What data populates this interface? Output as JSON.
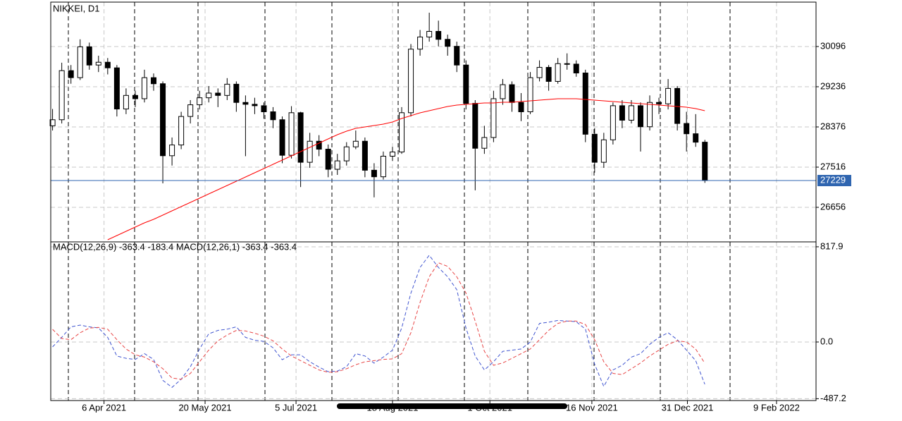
{
  "chart_data": [
    {
      "type": "candlestick",
      "title": "NIKKEI, D1",
      "candles": [
        [
          28400,
          28760,
          28300,
          28530
        ],
        [
          28530,
          29750,
          28450,
          29580
        ],
        [
          29580,
          29700,
          29300,
          29430
        ],
        [
          29430,
          30250,
          29380,
          30090
        ],
        [
          30090,
          30180,
          29600,
          29700
        ],
        [
          29700,
          29900,
          29550,
          29760
        ],
        [
          29760,
          29850,
          29500,
          29640
        ],
        [
          29640,
          29700,
          28600,
          28760
        ],
        [
          28760,
          29200,
          28650,
          29050
        ],
        [
          29050,
          29150,
          28800,
          28980
        ],
        [
          28980,
          29600,
          28900,
          29430
        ],
        [
          29430,
          29520,
          29150,
          29300
        ],
        [
          29300,
          29350,
          27170,
          27760
        ],
        [
          27760,
          28150,
          27550,
          27990
        ],
        [
          27990,
          28700,
          27900,
          28600
        ],
        [
          28600,
          28950,
          28450,
          28850
        ],
        [
          28850,
          29150,
          28750,
          29000
        ],
        [
          29000,
          29250,
          28900,
          29100
        ],
        [
          29100,
          29200,
          28800,
          29050
        ],
        [
          29050,
          29420,
          28950,
          29290
        ],
        [
          29290,
          29350,
          28700,
          28900
        ],
        [
          28900,
          29050,
          27750,
          28860
        ],
        [
          28860,
          29000,
          28650,
          28830
        ],
        [
          28830,
          28900,
          28550,
          28700
        ],
        [
          28700,
          28800,
          28350,
          28530
        ],
        [
          28530,
          28600,
          27600,
          27770
        ],
        [
          27770,
          28820,
          27700,
          28680
        ],
        [
          28680,
          28700,
          27090,
          27620
        ],
        [
          27620,
          28250,
          27500,
          28070
        ],
        [
          28070,
          28200,
          27750,
          27900
        ],
        [
          27900,
          28000,
          27300,
          27470
        ],
        [
          27470,
          27800,
          27350,
          27650
        ],
        [
          27650,
          28050,
          27550,
          27950
        ],
        [
          27950,
          28300,
          27900,
          28070
        ],
        [
          28070,
          28150,
          27300,
          27450
        ],
        [
          27450,
          27600,
          26870,
          27310
        ],
        [
          27310,
          27850,
          27250,
          27750
        ],
        [
          27750,
          27950,
          27650,
          27840
        ],
        [
          27840,
          28800,
          27800,
          28680
        ],
        [
          28680,
          30150,
          28600,
          30040
        ],
        [
          30040,
          30450,
          29900,
          30300
        ],
        [
          30300,
          30820,
          30200,
          30420
        ],
        [
          30420,
          30650,
          30100,
          30250
        ],
        [
          30250,
          30350,
          29900,
          30100
        ],
        [
          30100,
          30200,
          29550,
          29700
        ],
        [
          29700,
          29800,
          28750,
          28880
        ],
        [
          28880,
          28950,
          27020,
          27920
        ],
        [
          27920,
          28400,
          27800,
          28150
        ],
        [
          28150,
          29150,
          28050,
          28980
        ],
        [
          28980,
          29400,
          28850,
          29280
        ],
        [
          29280,
          29350,
          28700,
          28900
        ],
        [
          28900,
          29100,
          28500,
          28700
        ],
        [
          28700,
          29550,
          28650,
          29430
        ],
        [
          29430,
          29800,
          29350,
          29650
        ],
        [
          29650,
          29700,
          29150,
          29350
        ],
        [
          29350,
          29850,
          29300,
          29730
        ],
        [
          29730,
          29950,
          29600,
          29720
        ],
        [
          29720,
          29800,
          29450,
          29530
        ],
        [
          29530,
          29600,
          28050,
          28220
        ],
        [
          28220,
          28350,
          27400,
          27620
        ],
        [
          27620,
          28250,
          27500,
          28100
        ],
        [
          28100,
          28900,
          28000,
          28830
        ],
        [
          28830,
          28950,
          28350,
          28520
        ],
        [
          28520,
          28950,
          28450,
          28830
        ],
        [
          28830,
          28900,
          27850,
          28380
        ],
        [
          28380,
          29050,
          28300,
          28900
        ],
        [
          28900,
          29000,
          28650,
          28870
        ],
        [
          28870,
          29400,
          28750,
          29200
        ],
        [
          29200,
          29250,
          28300,
          28450
        ],
        [
          28450,
          28700,
          27850,
          28230
        ],
        [
          28230,
          28650,
          27950,
          28050
        ],
        [
          28050,
          28100,
          27180,
          27229
        ]
      ],
      "moving_average": {
        "color": "#ff0000",
        "values": [
          null,
          null,
          null,
          null,
          null,
          null,
          25962,
          26053,
          26143,
          26234,
          26324,
          26400,
          26490,
          26581,
          26671,
          26762,
          26852,
          26943,
          27033,
          27124,
          27214,
          27305,
          27395,
          27486,
          27576,
          27667,
          27757,
          27848,
          27938,
          28029,
          28119,
          28210,
          28285,
          28346,
          28376,
          28406,
          28436,
          28481,
          28557,
          28617,
          28677,
          28723,
          28768,
          28813,
          28844,
          28859,
          28874,
          28889,
          28889,
          28904,
          28904,
          28919,
          28934,
          28949,
          28964,
          28980,
          28980,
          28980,
          28964,
          28949,
          28934,
          28919,
          28904,
          28889,
          28874,
          28859,
          28844,
          28829,
          28813,
          28798,
          28768,
          28723
        ]
      },
      "last_price": 27229,
      "last_price_color": "#2f65b0",
      "xlim": [
        -0.2,
        83.1
      ],
      "ylim": [
        25917,
        31046
      ],
      "yticks": [
        26656,
        27516,
        28376,
        29236,
        30096
      ],
      "grid": true
    },
    {
      "type": "line",
      "title": "MACD(12,26,9) -363.4 -183.4 MACD(12,26,1) -363.4 -363.4",
      "series": [
        {
          "color": "#4055d0",
          "values": [
            -42,
            40,
            130,
            145,
            130,
            121,
            40,
            -121,
            -140,
            -150,
            -100,
            -150,
            -330,
            -390,
            -320,
            -212,
            -60,
            70,
            100,
            110,
            130,
            40,
            15,
            5,
            -50,
            -152,
            -110,
            -110,
            -170,
            -215,
            -255,
            -250,
            -212,
            -100,
            -120,
            -182,
            -130,
            -70,
            120,
            420,
            640,
            745,
            640,
            560,
            450,
            120,
            -120,
            -240,
            -170,
            -80,
            -70,
            -60,
            0,
            160,
            170,
            185,
            180,
            175,
            110,
            -190,
            -382,
            -240,
            -200,
            -130,
            -100,
            -20,
            40,
            80,
            20,
            -70,
            -160,
            -363.4
          ]
        },
        {
          "color": "#e84545",
          "values": [
            109,
            30,
            20,
            80,
            120,
            125,
            110,
            20,
            -60,
            -110,
            -130,
            -170,
            -230,
            -310,
            -320,
            -270,
            -170,
            -70,
            10,
            60,
            100,
            95,
            75,
            50,
            10,
            -60,
            -120,
            -160,
            -200,
            -240,
            -260,
            -255,
            -230,
            -195,
            -170,
            -160,
            -150,
            -145,
            -100,
            80,
            340,
            560,
            680,
            650,
            560,
            420,
            180,
            -80,
            -200,
            -180,
            -140,
            -100,
            -60,
            20,
            100,
            160,
            180,
            180,
            150,
            20,
            -170,
            -270,
            -280,
            -230,
            -180,
            -120,
            -70,
            -20,
            10,
            0,
            -60,
            -183.4
          ]
        }
      ],
      "xlim": [
        -0.2,
        83.1
      ],
      "xticks": [
        {
          "value": 5.6,
          "label": "6 Apr 2021"
        },
        {
          "value": 16.6,
          "label": "20 May 2021"
        },
        {
          "value": 26.5,
          "label": "5 Jul 2021"
        },
        {
          "value": 37.0,
          "label": "18 Aug 2021"
        },
        {
          "value": 47.6,
          "label": "1 Oct 2021"
        },
        {
          "value": 58.7,
          "label": "16 Nov 2021"
        },
        {
          "value": 69.1,
          "label": "31 Dec 2021"
        },
        {
          "value": 78.8,
          "label": "9 Feb 2022"
        }
      ],
      "ylim": [
        -503,
        860
      ],
      "yticks": [
        817.9,
        {
          "value": 0,
          "label": "0.0"
        },
        -487.2
      ],
      "grid": true
    }
  ]
}
